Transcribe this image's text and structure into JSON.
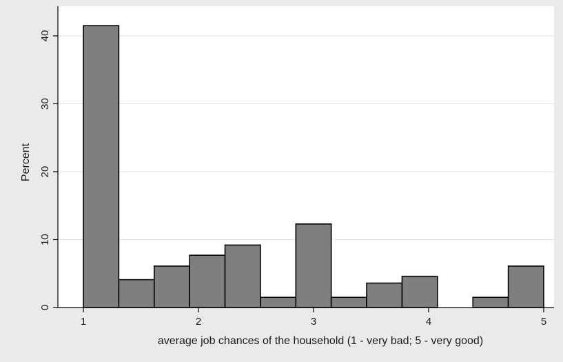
{
  "chart_data": {
    "type": "bar",
    "title": "",
    "xlabel": "average job chances of the household (1 - very bad; 5 - very good)",
    "ylabel": "Percent",
    "xlim": [
      1,
      5
    ],
    "ylim": [
      0,
      42
    ],
    "x_ticks": [
      1,
      2,
      3,
      4,
      5
    ],
    "y_ticks": [
      0,
      10,
      20,
      30,
      40
    ],
    "grid": true,
    "bins": [
      {
        "from": 1.0,
        "to": 1.3077,
        "value": 41.5
      },
      {
        "from": 1.3077,
        "to": 1.6154,
        "value": 4.1
      },
      {
        "from": 1.6154,
        "to": 1.9231,
        "value": 6.1
      },
      {
        "from": 1.9231,
        "to": 2.2308,
        "value": 7.7
      },
      {
        "from": 2.2308,
        "to": 2.5385,
        "value": 9.2
      },
      {
        "from": 2.5385,
        "to": 2.8462,
        "value": 1.5
      },
      {
        "from": 2.8462,
        "to": 3.1538,
        "value": 12.3
      },
      {
        "from": 3.1538,
        "to": 3.4615,
        "value": 1.5
      },
      {
        "from": 3.4615,
        "to": 3.7692,
        "value": 3.6
      },
      {
        "from": 3.7692,
        "to": 4.0769,
        "value": 4.6
      },
      {
        "from": 4.0769,
        "to": 4.3846,
        "value": 0
      },
      {
        "from": 4.3846,
        "to": 4.6923,
        "value": 1.5
      },
      {
        "from": 4.6923,
        "to": 5.0,
        "value": 6.1
      }
    ],
    "colors": {
      "outer_background": "#eaeaea",
      "plot_background": "#ffffff",
      "bar_fill": "#7f7f7f",
      "bar_stroke": "#000000",
      "grid": "#e6e6e6",
      "axis": "#000000"
    }
  }
}
